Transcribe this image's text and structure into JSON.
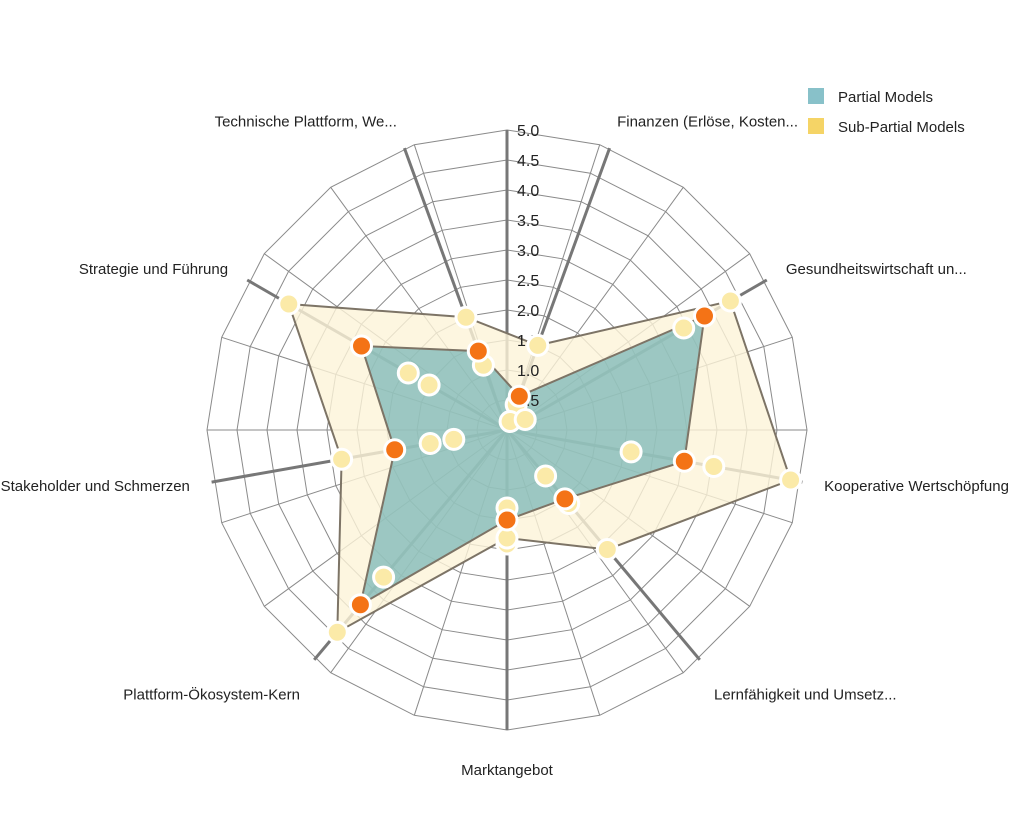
{
  "chart_data": {
    "type": "radar",
    "axes": [
      "Finanzen (Erlöse, Kosten...",
      "Gesundheitswirtschaft un...",
      "Kooperative Wertschöpfung",
      "Lernfähigkeit und Umsetz...",
      "Marktangebot",
      "Plattform-Ökosystem-Kern",
      "Stakeholder und Schmerzen",
      "Strategie und Führung",
      "Technische Plattform, We..."
    ],
    "scale": {
      "min": 0,
      "max": 5,
      "step": 0.5
    },
    "tick_labels": [
      "0.5",
      "1.0",
      "1.5",
      "2.0",
      "2.5",
      "3.0",
      "3.5",
      "4.0",
      "4.5",
      "5.0"
    ],
    "grid": true,
    "series": [
      {
        "name": "Partial Models",
        "color": "#88c1c9",
        "area_color": "#5ba8ad",
        "marker_color": "#f47316",
        "values": [
          0.6,
          3.8,
          3.0,
          1.5,
          1.5,
          3.8,
          1.9,
          2.8,
          1.4
        ]
      },
      {
        "name": "Sub-Partial Models",
        "color": "#f5d466",
        "area_color": "#fdf4d8",
        "marker_color": "#fbeaa8",
        "values": [
          1.5,
          4.3,
          4.8,
          2.6,
          1.8,
          4.4,
          2.8,
          4.2,
          2.0
        ]
      }
    ],
    "extra_points": [
      {
        "axis": 0,
        "value": 0.45
      },
      {
        "axis": 0,
        "value": 0.15
      },
      {
        "axis": 1,
        "value": 3.4
      },
      {
        "axis": 2,
        "value": 3.5
      },
      {
        "axis": 2,
        "value": 2.1
      },
      {
        "axis": 3,
        "value": 1.0
      },
      {
        "axis": 4,
        "value": 1.9
      },
      {
        "axis": 5,
        "value": 3.2
      },
      {
        "axis": 6,
        "value": 1.3
      },
      {
        "axis": 7,
        "value": 1.9
      },
      {
        "axis": 8,
        "value": 1.15
      },
      {
        "axis": 1,
        "value": 0.35
      },
      {
        "axis": 3,
        "value": 1.6
      },
      {
        "axis": 6,
        "value": 0.9
      },
      {
        "axis": 4,
        "value": 1.3
      },
      {
        "axis": 7,
        "value": 1.5
      }
    ],
    "legend": {
      "position": "top-right",
      "entries": [
        {
          "label": "Partial Models",
          "color": "#88c1c9"
        },
        {
          "label": "Sub-Partial Models",
          "color": "#f5d466"
        }
      ]
    }
  }
}
